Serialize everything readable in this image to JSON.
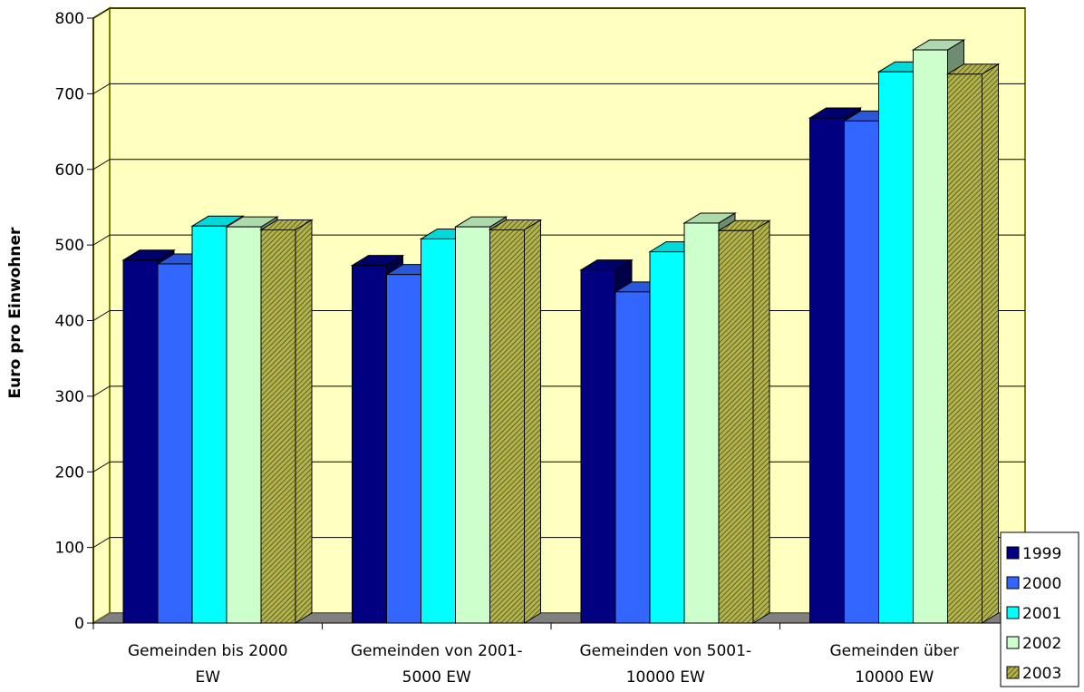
{
  "chart_data": {
    "type": "bar",
    "title": "",
    "xlabel": "",
    "ylabel": "Euro pro Einwohner",
    "ylim": [
      0,
      800
    ],
    "yticks": [
      0,
      100,
      200,
      300,
      400,
      500,
      600,
      700,
      800
    ],
    "grid": true,
    "style": "3d-clustered-column",
    "legend_position": "bottom-right",
    "categories": [
      [
        "Gemeinden bis 2000",
        "EW"
      ],
      [
        "Gemeinden von 2001-",
        "5000 EW"
      ],
      [
        "Gemeinden von 5001-",
        "10000 EW"
      ],
      [
        "Gemeinden über",
        "10000 EW"
      ]
    ],
    "series": [
      {
        "name": "1999",
        "color": "#000080",
        "values": [
          480,
          473,
          467,
          668
        ]
      },
      {
        "name": "2000",
        "color": "#3366ff",
        "values": [
          475,
          461,
          438,
          664
        ]
      },
      {
        "name": "2001",
        "color": "#00ffff",
        "values": [
          525,
          508,
          491,
          729
        ]
      },
      {
        "name": "2002",
        "color": "#ccffcc",
        "values": [
          524,
          524,
          529,
          758
        ]
      },
      {
        "name": "2003",
        "color": "#999933",
        "hatch": true,
        "values": [
          520,
          520,
          519,
          726
        ]
      }
    ],
    "colors": {
      "plot_background": "#ffffc0",
      "wall_border": "#808000",
      "floor": "#808080"
    }
  }
}
